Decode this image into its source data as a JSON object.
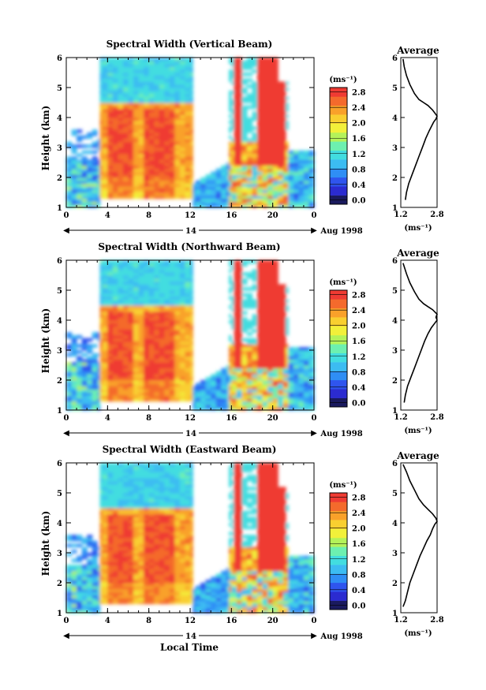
{
  "figure": {
    "xlabel": "Local Time",
    "date_label": "14",
    "month_label": "Aug 1998",
    "ylabel": "Height (km)",
    "colorbar_unit": "(ms⁻¹)",
    "avg_title": "Average",
    "avg_unit": "(ms⁻¹)"
  },
  "colors": {
    "scale": [
      "#1a1a5e",
      "#2b2bd0",
      "#2f55ee",
      "#2f8ef5",
      "#3cbcf2",
      "#42dde0",
      "#6df0b0",
      "#b4f25a",
      "#f2f03a",
      "#f9cf30",
      "#f9a12a",
      "#f46a2c",
      "#ef3b33"
    ]
  },
  "chart_data": [
    {
      "type": "heatmap",
      "title": "Spectral Width (Vertical Beam)",
      "x_ticks": [
        "0",
        "4",
        "8",
        "12",
        "16",
        "20",
        "0"
      ],
      "y_ticks": [
        "1",
        "2",
        "3",
        "4",
        "5",
        "6"
      ],
      "xlim": [
        0,
        24
      ],
      "ylim": [
        1,
        6
      ],
      "colorbar_ticks": [
        "0.0",
        "0.4",
        "0.8",
        "1.2",
        "1.6",
        "2.0",
        "2.4",
        "2.8"
      ],
      "colorbar_range": [
        0,
        2.8
      ],
      "variant": 0
    },
    {
      "type": "line",
      "title": "Average",
      "x_ticks": [
        "1.2",
        "2.8"
      ],
      "y_ticks": [
        "1",
        "2",
        "3",
        "4",
        "5",
        "6"
      ],
      "xlim": [
        1.2,
        2.8
      ],
      "ylim": [
        1,
        6
      ],
      "x": [
        1.4,
        1.45,
        1.55,
        1.7,
        1.85,
        2.0,
        2.1,
        2.2,
        2.3,
        2.45,
        2.55,
        2.65,
        2.75,
        2.8,
        2.6,
        2.4,
        2.2,
        2.0,
        1.8,
        1.6,
        1.45,
        1.35,
        1.3
      ],
      "y": [
        1.25,
        1.5,
        1.8,
        2.1,
        2.4,
        2.7,
        2.9,
        3.1,
        3.3,
        3.55,
        3.7,
        3.85,
        3.95,
        4.05,
        4.25,
        4.4,
        4.5,
        4.6,
        4.8,
        5.1,
        5.4,
        5.7,
        5.95
      ]
    },
    {
      "type": "heatmap",
      "title": "Spectral Width (Northward Beam)",
      "x_ticks": [
        "0",
        "4",
        "8",
        "12",
        "16",
        "20",
        "0"
      ],
      "y_ticks": [
        "1",
        "2",
        "3",
        "4",
        "5",
        "6"
      ],
      "xlim": [
        0,
        24
      ],
      "ylim": [
        1,
        6
      ],
      "colorbar_ticks": [
        "0.0",
        "0.4",
        "0.8",
        "1.2",
        "1.6",
        "2.0",
        "2.4",
        "2.8"
      ],
      "colorbar_range": [
        0,
        2.8
      ],
      "variant": 1
    },
    {
      "type": "line",
      "title": "Average",
      "x_ticks": [
        "1.2",
        "2.8"
      ],
      "y_ticks": [
        "1",
        "2",
        "3",
        "4",
        "5",
        "6"
      ],
      "xlim": [
        1.2,
        2.8
      ],
      "ylim": [
        1,
        6
      ],
      "x": [
        1.35,
        1.4,
        1.5,
        1.65,
        1.8,
        1.95,
        2.1,
        2.25,
        2.4,
        2.55,
        2.7,
        2.8,
        2.75,
        2.8,
        2.6,
        2.4,
        2.2,
        2.0,
        1.8,
        1.6,
        1.45,
        1.3
      ],
      "y": [
        1.25,
        1.5,
        1.8,
        2.1,
        2.4,
        2.7,
        3.0,
        3.3,
        3.55,
        3.75,
        3.9,
        4.0,
        4.1,
        4.2,
        4.35,
        4.45,
        4.55,
        4.7,
        4.95,
        5.25,
        5.55,
        5.9
      ]
    },
    {
      "type": "heatmap",
      "title": "Spectral Width (Eastward Beam)",
      "x_ticks": [
        "0",
        "4",
        "8",
        "12",
        "16",
        "20",
        "0"
      ],
      "y_ticks": [
        "1",
        "2",
        "3",
        "4",
        "5",
        "6"
      ],
      "xlim": [
        0,
        24
      ],
      "ylim": [
        1,
        6
      ],
      "colorbar_ticks": [
        "0.0",
        "0.4",
        "0.8",
        "1.2",
        "1.6",
        "2.0",
        "2.4",
        "2.8"
      ],
      "colorbar_range": [
        0,
        2.8
      ],
      "variant": 2
    },
    {
      "type": "line",
      "title": "Average",
      "x_ticks": [
        "1.2",
        "2.8"
      ],
      "y_ticks": [
        "1",
        "2",
        "3",
        "4",
        "5",
        "6"
      ],
      "xlim": [
        1.2,
        2.8
      ],
      "ylim": [
        1,
        6
      ],
      "x": [
        1.3,
        1.4,
        1.5,
        1.6,
        1.75,
        1.9,
        2.05,
        2.2,
        2.35,
        2.5,
        2.6,
        2.7,
        2.8,
        2.75,
        2.6,
        2.4,
        2.2,
        2.0,
        1.8,
        1.6,
        1.45,
        1.3
      ],
      "y": [
        1.2,
        1.4,
        1.7,
        2.0,
        2.3,
        2.6,
        2.9,
        3.15,
        3.4,
        3.6,
        3.8,
        3.95,
        4.05,
        4.15,
        4.3,
        4.45,
        4.6,
        4.8,
        5.1,
        5.4,
        5.7,
        5.95
      ]
    }
  ]
}
